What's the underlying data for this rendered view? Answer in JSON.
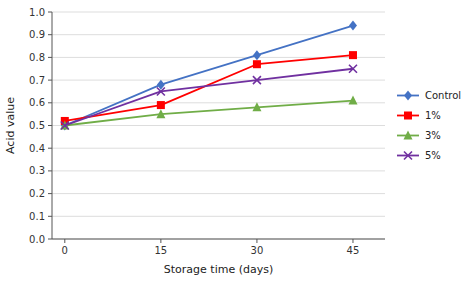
{
  "chart_data": {
    "type": "line",
    "xlabel": "Storage time (days)",
    "ylabel": "Acid value",
    "x": [
      0,
      15,
      30,
      45
    ],
    "series": [
      {
        "name": "Control",
        "color": "#4472C4",
        "marker": "diamond",
        "values": [
          0.5,
          0.68,
          0.81,
          0.94
        ]
      },
      {
        "name": "1%",
        "color": "#FF0000",
        "marker": "square",
        "values": [
          0.52,
          0.59,
          0.77,
          0.81
        ]
      },
      {
        "name": "3%",
        "color": "#70AD47",
        "marker": "triangle",
        "values": [
          0.5,
          0.55,
          0.58,
          0.61
        ]
      },
      {
        "name": "5%",
        "color": "#7030A0",
        "marker": "x",
        "values": [
          0.5,
          0.65,
          0.7,
          0.75
        ]
      }
    ],
    "xlim": [
      -2,
      50
    ],
    "ylim": [
      0,
      1.0
    ],
    "xticks": [
      0,
      15,
      30,
      45
    ],
    "yticks": [
      {
        "value": 0,
        "label": "0.0"
      },
      0.1,
      0.2,
      0.3,
      0.4,
      0.5,
      0.6,
      0.7,
      0.8,
      0.9,
      {
        "value": 1,
        "label": "1.0"
      }
    ],
    "grid": true,
    "legend": "right"
  }
}
